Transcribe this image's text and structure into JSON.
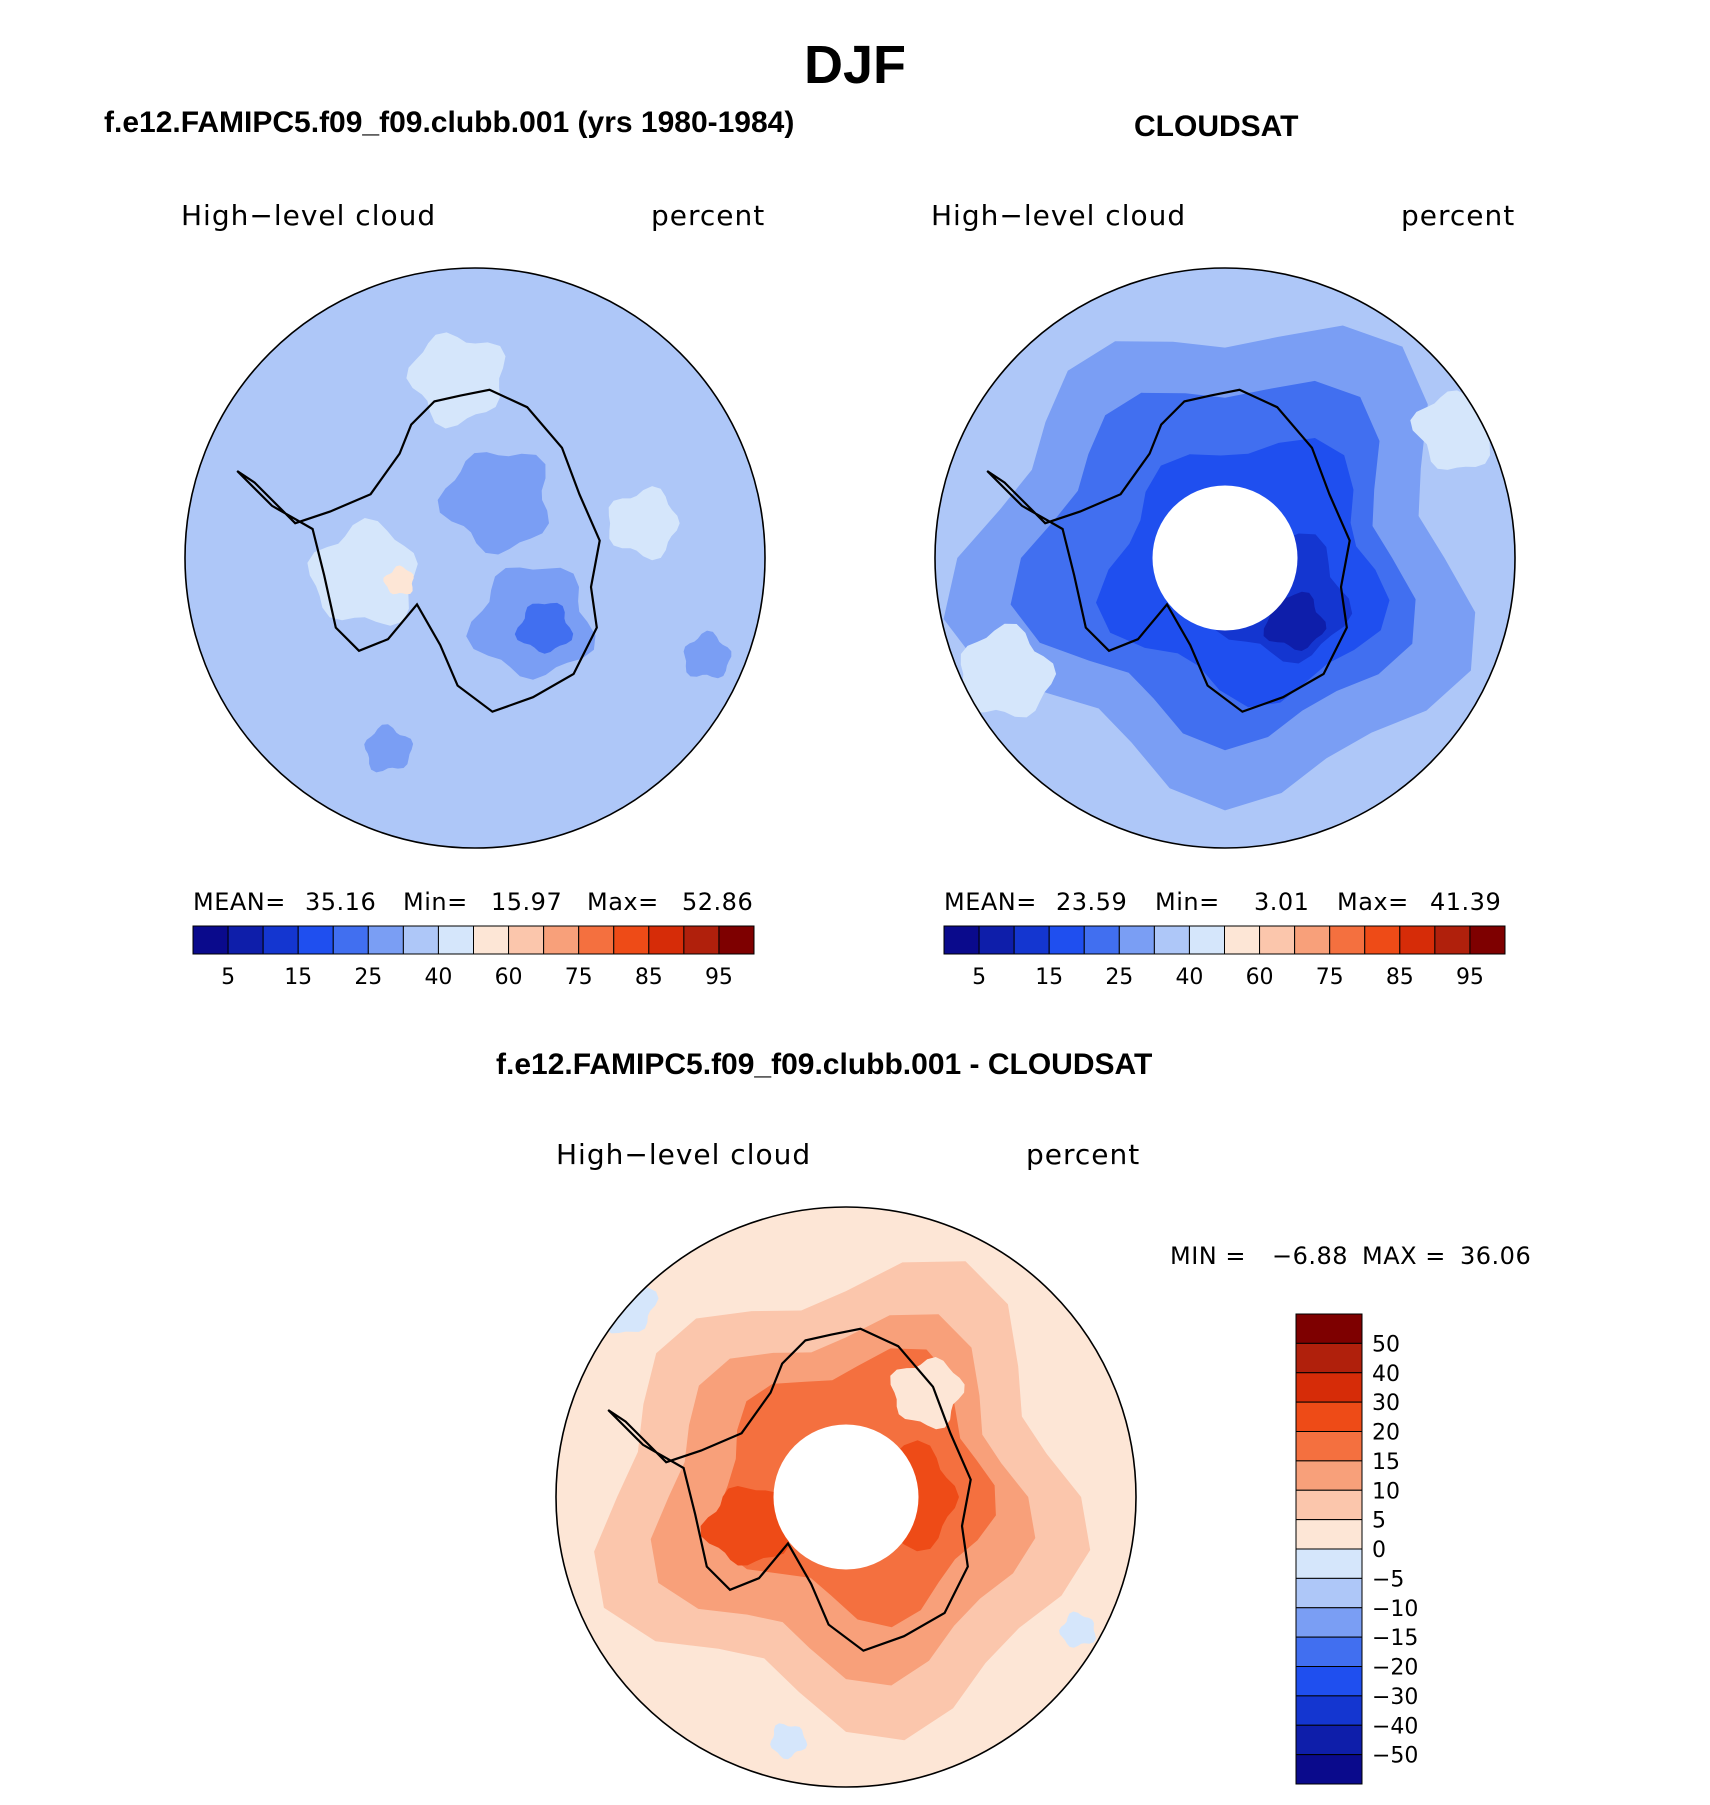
{
  "page": {
    "title": "DJF"
  },
  "panels": [
    {
      "id": "model",
      "title": "f.e12.FAMIPC5.f09_f09.clubb.001 (yrs 1980-1984)",
      "variable": "High−level cloud",
      "units": "percent",
      "stats": {
        "mean_label": "MEAN=",
        "mean": "35.16",
        "min_label": "Min=",
        "min": "15.97",
        "max_label": "Max=",
        "max": "52.86"
      }
    },
    {
      "id": "obs",
      "title": "CLOUDSAT",
      "variable": "High−level cloud",
      "units": "percent",
      "stats": {
        "mean_label": "MEAN=",
        "mean": "23.59",
        "min_label": "Min=",
        "min": "3.01",
        "max_label": "Max=",
        "max": "41.39"
      }
    },
    {
      "id": "diff",
      "title": "f.e12.FAMIPC5.f09_f09.clubb.001 - CLOUDSAT",
      "variable": "High−level cloud",
      "units": "percent",
      "stats": {
        "min_label": "MIN =",
        "min": "−6.88",
        "max_label": "MAX =",
        "max": "36.06"
      }
    }
  ],
  "colors": {
    "abs_scale": [
      "#0a0a8c",
      "#0e1eaa",
      "#1436d0",
      "#1f4fef",
      "#416ff0",
      "#7a9ef4",
      "#aec7f8",
      "#d5e6fb",
      "#fde6d6",
      "#fbc6ac",
      "#f8a07a",
      "#f4703f",
      "#ee4b17",
      "#d62c08",
      "#b0200c",
      "#7e0000"
    ],
    "diff_scale": [
      "#0a0a8c",
      "#0e1eaa",
      "#1436d0",
      "#1f4fef",
      "#416ff0",
      "#7a9ef4",
      "#aec7f8",
      "#d5e6fb",
      "#fde6d6",
      "#fbc6ac",
      "#f8a07a",
      "#f4703f",
      "#ee4b17",
      "#d62c08",
      "#b0200c",
      "#7e0000"
    ],
    "coast": "#000000"
  },
  "chart_data": [
    {
      "type": "heatmap",
      "name": "model",
      "title": "f.e12.FAMIPC5.f09_f09.clubb.001 (yrs 1980-1984)",
      "projection": "south-polar stereographic",
      "colorbar_ticks": [
        "5",
        "15",
        "25",
        "40",
        "60",
        "75",
        "85",
        "95"
      ],
      "colorbar_bins": 16,
      "background_level": 6,
      "regions": [
        {
          "level": 7,
          "desc": "Weddell Sea / West Antarctica",
          "cx": 0.31,
          "cy": 0.53,
          "r": 0.09
        },
        {
          "level": 7,
          "desc": "Ross Sea sector north",
          "cx": 0.47,
          "cy": 0.19,
          "r": 0.08
        },
        {
          "level": 7,
          "desc": "Indian Ocean sector",
          "cx": 0.79,
          "cy": 0.44,
          "r": 0.06
        },
        {
          "level": 5,
          "desc": "East Antarctic interior",
          "cx": 0.6,
          "cy": 0.61,
          "r": 0.1
        },
        {
          "level": 5,
          "desc": "Wilkes Land interior",
          "cx": 0.54,
          "cy": 0.4,
          "r": 0.09
        },
        {
          "level": 5,
          "desc": "Pacific patch",
          "cx": 0.35,
          "cy": 0.83,
          "r": 0.04
        },
        {
          "level": 5,
          "desc": "Southern Indian patch",
          "cx": 0.9,
          "cy": 0.67,
          "r": 0.04
        },
        {
          "level": 4,
          "desc": "Amery maximum",
          "cx": 0.62,
          "cy": 0.62,
          "r": 0.045
        },
        {
          "level": 8,
          "desc": "Weddell minimum",
          "cx": 0.37,
          "cy": 0.54,
          "r": 0.025
        }
      ]
    },
    {
      "type": "heatmap",
      "name": "obs",
      "title": "CLOUDSAT",
      "projection": "south-polar stereographic",
      "colorbar_ticks": [
        "5",
        "15",
        "25",
        "40",
        "60",
        "75",
        "85",
        "95"
      ],
      "colorbar_bins": 16,
      "background_level": 6,
      "missing_pole_radius_frac": 0.25,
      "regions": [
        {
          "level": 5,
          "desc": "mid-latitude band",
          "cx": 0.5,
          "cy": 0.5,
          "r": 0.42
        },
        {
          "level": 4,
          "desc": "subpolar band",
          "cx": 0.5,
          "cy": 0.5,
          "r": 0.32
        },
        {
          "level": 3,
          "desc": "Antarctic interior ring",
          "cx": 0.54,
          "cy": 0.52,
          "r": 0.23
        },
        {
          "level": 2,
          "desc": "East Antarctic deep cloud",
          "cx": 0.6,
          "cy": 0.57,
          "r": 0.11
        },
        {
          "level": 1,
          "desc": "Maximum near Amery",
          "cx": 0.62,
          "cy": 0.61,
          "r": 0.05
        },
        {
          "level": 7,
          "desc": "Pacific sector",
          "cx": 0.12,
          "cy": 0.7,
          "r": 0.08
        },
        {
          "level": 7,
          "desc": "Atlantic sector",
          "cx": 0.9,
          "cy": 0.28,
          "r": 0.07
        }
      ]
    },
    {
      "type": "heatmap",
      "name": "difference",
      "title": "f.e12.FAMIPC5.f09_f09.clubb.001 - CLOUDSAT",
      "projection": "south-polar stereographic",
      "colorbar_ticks": [
        "50",
        "40",
        "30",
        "20",
        "15",
        "10",
        "5",
        "0",
        "−5",
        "−10",
        "−15",
        "−20",
        "−30",
        "−40",
        "−50"
      ],
      "colorbar_bins": 16,
      "background_level": 8,
      "missing_pole_radius_frac": 0.25,
      "regions": [
        {
          "level": 9,
          "desc": "mid-latitude positive band",
          "cx": 0.5,
          "cy": 0.5,
          "r": 0.4
        },
        {
          "level": 10,
          "desc": "subpolar band",
          "cx": 0.5,
          "cy": 0.5,
          "r": 0.31
        },
        {
          "level": 11,
          "desc": "coastal ring",
          "cx": 0.52,
          "cy": 0.48,
          "r": 0.23
        },
        {
          "level": 12,
          "desc": "East Antarctica strong positive",
          "cx": 0.6,
          "cy": 0.5,
          "r": 0.09
        },
        {
          "level": 12,
          "desc": "West Antarctica strong positive",
          "cx": 0.33,
          "cy": 0.55,
          "r": 0.07
        },
        {
          "level": 8,
          "desc": "Dronning Maud plateau",
          "cx": 0.64,
          "cy": 0.32,
          "r": 0.06
        },
        {
          "level": 7,
          "desc": "Pacific small negative",
          "cx": 0.12,
          "cy": 0.17,
          "r": 0.05
        },
        {
          "level": 7,
          "desc": "Indian small negative",
          "cx": 0.9,
          "cy": 0.73,
          "r": 0.03
        },
        {
          "level": 7,
          "desc": "Southern small negative",
          "cx": 0.4,
          "cy": 0.92,
          "r": 0.03
        }
      ]
    }
  ]
}
